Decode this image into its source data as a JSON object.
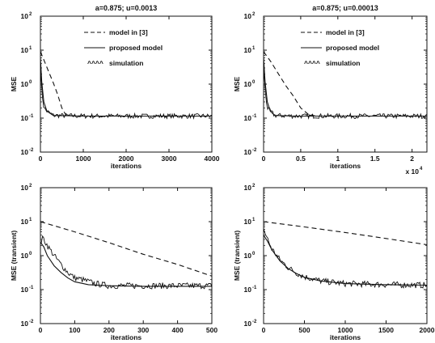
{
  "figure_title_text": "",
  "chart_data": [
    {
      "type": "line",
      "title": "a=0.875; u=0.0013",
      "xlabel": "iterations",
      "ylabel": "MSE",
      "xlim": [
        0,
        4000
      ],
      "ylim": [
        0.01,
        100
      ],
      "yscale": "log",
      "x_ticks": [
        "0",
        "1000",
        "2000",
        "3000",
        "4000"
      ],
      "x_multiplier": "",
      "y_ticks": [
        {
          "base": "10",
          "exp": "-2"
        },
        {
          "base": "10",
          "exp": "-1"
        },
        {
          "base": "10",
          "exp": "0"
        },
        {
          "base": "10",
          "exp": "1"
        },
        {
          "base": "10",
          "exp": "2"
        }
      ],
      "grid": false,
      "legend_position": "upper-right",
      "series": [
        {
          "name": "model in [3]",
          "style": "dashed",
          "x": [
            0,
            100,
            200,
            300,
            400,
            500,
            600,
            1000,
            4000
          ],
          "y": [
            9,
            4.5,
            2.2,
            1.1,
            0.5,
            0.2,
            0.12,
            0.115,
            0.115
          ]
        },
        {
          "name": "proposed model",
          "style": "solid",
          "x": [
            0,
            30,
            80,
            150,
            300,
            1000,
            4000
          ],
          "y": [
            6,
            1.2,
            0.3,
            0.16,
            0.12,
            0.115,
            0.115
          ]
        },
        {
          "name": "simulation",
          "style": "noisy",
          "x": [
            0,
            30,
            80,
            150,
            300,
            1000,
            4000
          ],
          "y": [
            3,
            0.7,
            0.2,
            0.16,
            0.12,
            0.115,
            0.115
          ]
        }
      ]
    },
    {
      "type": "line",
      "title": "a=0.875; u=0.00013",
      "xlabel": "iterations",
      "ylabel": "MSE",
      "xlim": [
        0,
        22000
      ],
      "ylim": [
        0.01,
        100
      ],
      "yscale": "log",
      "x_ticks": [
        "0",
        "0.5",
        "1",
        "1.5",
        "2"
      ],
      "x_multiplier": {
        "base": "x 10",
        "exp": "4"
      },
      "y_ticks": [
        {
          "base": "10",
          "exp": "-2"
        },
        {
          "base": "10",
          "exp": "-1"
        },
        {
          "base": "10",
          "exp": "0"
        },
        {
          "base": "10",
          "exp": "1"
        },
        {
          "base": "10",
          "exp": "2"
        }
      ],
      "grid": false,
      "legend_position": "upper-right",
      "series": [
        {
          "name": "model in [3]",
          "style": "dashed",
          "x": [
            0,
            1000,
            2000,
            3000,
            4000,
            5000,
            6000,
            7000,
            22000
          ],
          "y": [
            9,
            4.5,
            2,
            0.9,
            0.45,
            0.2,
            0.13,
            0.115,
            0.115
          ]
        },
        {
          "name": "proposed model",
          "style": "solid",
          "x": [
            0,
            200,
            500,
            900,
            1500,
            4000,
            22000
          ],
          "y": [
            6,
            1.2,
            0.3,
            0.16,
            0.12,
            0.115,
            0.115
          ]
        },
        {
          "name": "simulation",
          "style": "noisy",
          "x": [
            0,
            200,
            500,
            900,
            1500,
            4000,
            22000
          ],
          "y": [
            3,
            0.7,
            0.2,
            0.16,
            0.12,
            0.115,
            0.115
          ]
        }
      ]
    },
    {
      "type": "line",
      "title": "",
      "xlabel": "iterations",
      "ylabel": "MSE (transient)",
      "xlim": [
        0,
        500
      ],
      "ylim": [
        0.01,
        100
      ],
      "yscale": "log",
      "x_ticks": [
        "0",
        "100",
        "200",
        "300",
        "400",
        "500"
      ],
      "x_multiplier": "",
      "y_ticks": [
        {
          "base": "10",
          "exp": "-2"
        },
        {
          "base": "10",
          "exp": "-1"
        },
        {
          "base": "10",
          "exp": "0"
        },
        {
          "base": "10",
          "exp": "1"
        },
        {
          "base": "10",
          "exp": "2"
        }
      ],
      "grid": false,
      "legend_position": "none",
      "series": [
        {
          "style": "dashed",
          "x": [
            0,
            100,
            200,
            300,
            400,
            500
          ],
          "y": [
            10,
            5,
            2.4,
            1.1,
            0.55,
            0.25
          ]
        },
        {
          "style": "solid",
          "x": [
            0,
            10,
            20,
            40,
            60,
            80,
            100,
            140,
            200,
            300,
            500
          ],
          "y": [
            2.5,
            1.8,
            1.0,
            0.5,
            0.32,
            0.22,
            0.17,
            0.14,
            0.13,
            0.125,
            0.125
          ]
        },
        {
          "style": "noisy",
          "x": [
            0,
            8,
            20,
            40,
            60,
            80,
            100,
            120,
            160,
            200,
            300,
            500
          ],
          "y": [
            2.5,
            3.3,
            2.0,
            1.0,
            0.55,
            0.32,
            0.22,
            0.2,
            0.15,
            0.13,
            0.13,
            0.13
          ]
        }
      ]
    },
    {
      "type": "line",
      "title": "",
      "xlabel": "iterations",
      "ylabel": "MSE (transient)",
      "xlim": [
        0,
        2000
      ],
      "ylim": [
        0.01,
        100
      ],
      "yscale": "log",
      "x_ticks": [
        "0",
        "500",
        "1000",
        "1500",
        "2000"
      ],
      "x_multiplier": "",
      "y_ticks": [
        {
          "base": "10",
          "exp": "-2"
        },
        {
          "base": "10",
          "exp": "-1"
        },
        {
          "base": "10",
          "exp": "0"
        },
        {
          "base": "10",
          "exp": "1"
        },
        {
          "base": "10",
          "exp": "2"
        }
      ],
      "grid": false,
      "legend_position": "none",
      "series": [
        {
          "style": "dashed",
          "x": [
            0,
            500,
            1000,
            1500,
            2000
          ],
          "y": [
            10,
            7,
            4.8,
            3.2,
            2.1
          ]
        },
        {
          "style": "solid",
          "x": [
            0,
            50,
            100,
            200,
            300,
            400,
            500,
            700,
            1000,
            1500,
            2000
          ],
          "y": [
            4,
            2.6,
            1.5,
            0.7,
            0.42,
            0.3,
            0.23,
            0.18,
            0.15,
            0.14,
            0.135
          ]
        },
        {
          "style": "noisy",
          "x": [
            0,
            50,
            100,
            200,
            300,
            400,
            500,
            700,
            1000,
            1500,
            2000
          ],
          "y": [
            6,
            3.0,
            1.6,
            0.75,
            0.45,
            0.31,
            0.24,
            0.18,
            0.15,
            0.14,
            0.135
          ]
        }
      ]
    }
  ]
}
